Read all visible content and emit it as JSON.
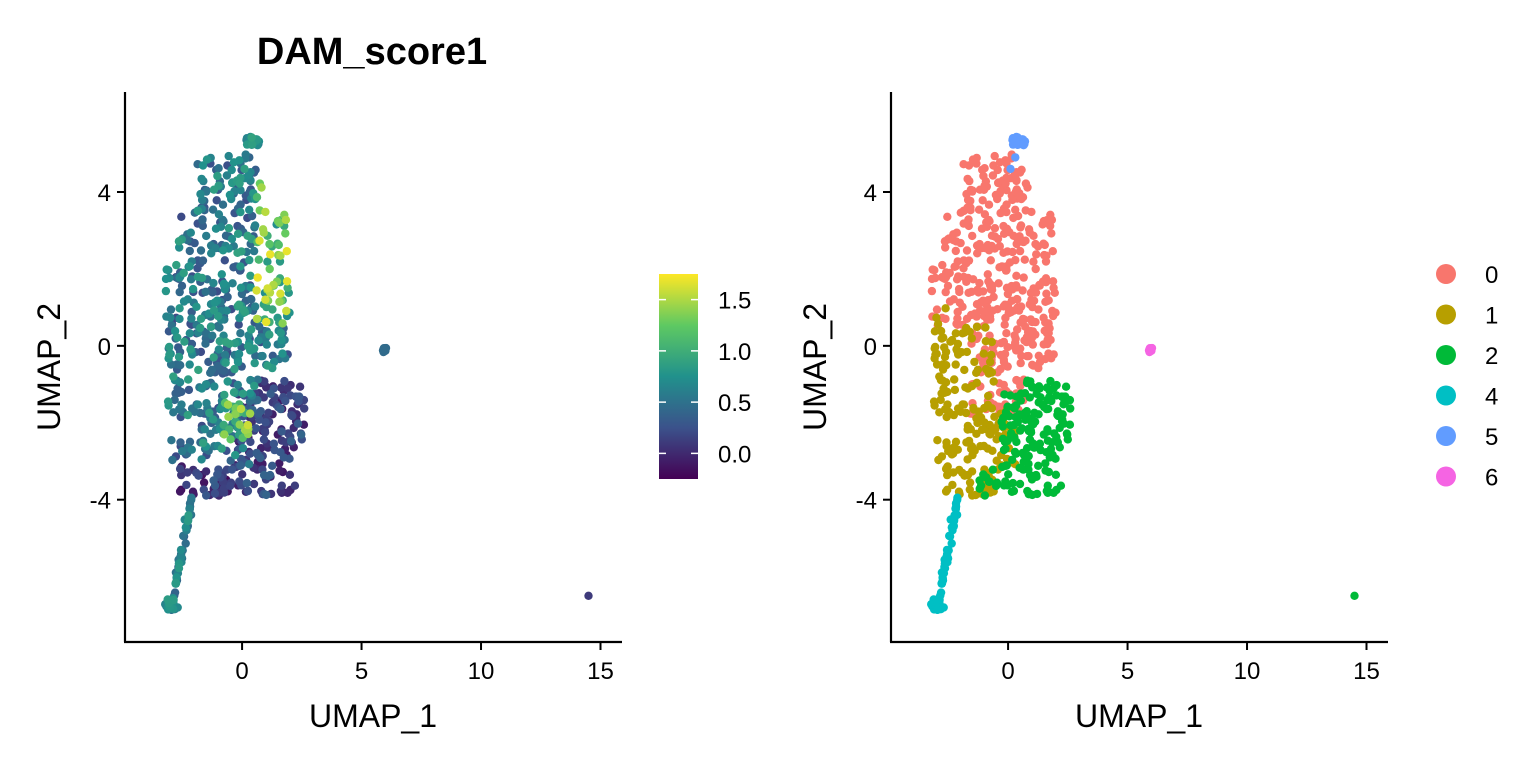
{
  "chart_data": [
    {
      "type": "scatter",
      "title": "DAM_score1",
      "xlabel": "UMAP_1",
      "ylabel": "UMAP_2",
      "xlim": [
        -4.9,
        15.9
      ],
      "ylim": [
        -7.7,
        6.6
      ],
      "x_ticks": [
        0,
        5,
        10,
        15
      ],
      "x_tick_labels": [
        "0",
        "5",
        "10",
        "15"
      ],
      "y_ticks": [
        -4,
        0,
        4
      ],
      "y_tick_labels": [
        "-4",
        "0",
        "4"
      ],
      "grid": false,
      "color_scale": {
        "type": "continuous",
        "palette": "viridis",
        "colors": [
          "#440154",
          "#3b528b",
          "#21918c",
          "#5ec962",
          "#fde725"
        ],
        "range": [
          -0.25,
          1.75
        ],
        "ticks": [
          0.0,
          0.5,
          1.0,
          1.5
        ],
        "tick_labels": [
          "0.0",
          "0.5",
          "1.0",
          "1.5"
        ],
        "legend_position": "right"
      },
      "points_note": "approx. 1000 cells; colored by DAM_score1",
      "highlighted_points": [
        {
          "x": 14.5,
          "y": -6.5,
          "value": 0.1
        },
        {
          "x": 5.9,
          "y": -0.1,
          "value": 0.45
        }
      ]
    },
    {
      "type": "scatter",
      "title": "",
      "xlabel": "UMAP_1",
      "ylabel": "UMAP_2",
      "xlim": [
        -4.9,
        15.9
      ],
      "ylim": [
        -7.7,
        6.6
      ],
      "x_ticks": [
        0,
        5,
        10,
        15
      ],
      "x_tick_labels": [
        "0",
        "5",
        "10",
        "15"
      ],
      "y_ticks": [
        -4,
        0,
        4
      ],
      "y_tick_labels": [
        "-4",
        "0",
        "4"
      ],
      "grid": false,
      "legend_position": "right",
      "series": [
        {
          "name": "0",
          "color": "#F8766D"
        },
        {
          "name": "1",
          "color": "#B79F00"
        },
        {
          "name": "2",
          "color": "#00BA38"
        },
        {
          "name": "4",
          "color": "#00BFC4"
        },
        {
          "name": "5",
          "color": "#619CFF"
        },
        {
          "name": "6",
          "color": "#F564E3"
        }
      ],
      "highlighted_points": [
        {
          "x": 14.5,
          "y": -6.5,
          "series": "2"
        },
        {
          "x": 5.95,
          "y": -0.1,
          "series": "6"
        }
      ]
    }
  ]
}
